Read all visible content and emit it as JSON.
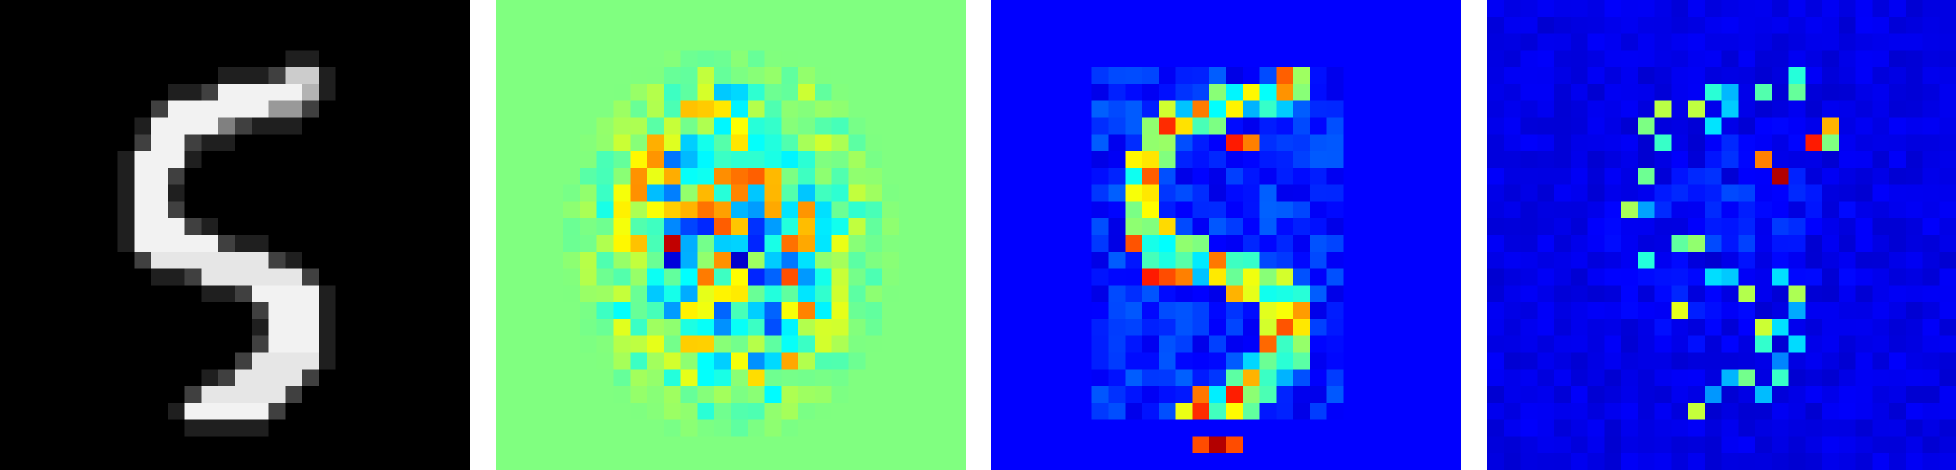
{
  "panels": [
    {
      "name": "input-digit-image",
      "colormap": "gray",
      "background": "#000000"
    },
    {
      "name": "signed-attribution-heatmap",
      "colormap": "jet",
      "background": "#80ff80"
    },
    {
      "name": "positive-relevance-heatmap",
      "colormap": "jet",
      "background": "#0000ff"
    },
    {
      "name": "noisy-gradient-heatmap",
      "colormap": "jet",
      "background": "#0000c0"
    }
  ],
  "palette": {
    "gray_light": "#f0f0f0",
    "jet_dark_blue": "#00007f",
    "jet_blue": "#0000ff",
    "jet_cyan": "#00ffff",
    "jet_green": "#80ff80",
    "jet_yellow": "#ffff00",
    "jet_orange": "#ff8000",
    "jet_red": "#ff0000",
    "jet_dark_red": "#7f0000"
  }
}
